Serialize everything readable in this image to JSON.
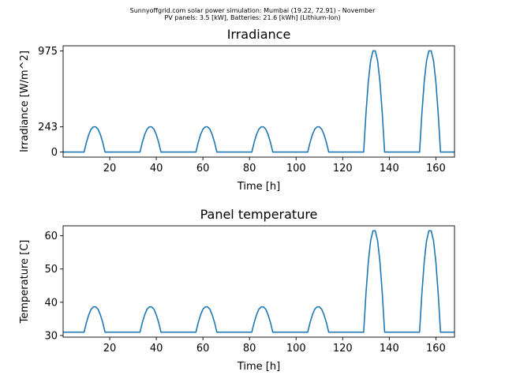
{
  "suptitle": {
    "line1": "Sunnyoffgrid.com solar power simulation: Mumbai (19.22, 72.91) - November",
    "line2": "PV panels: 3.5 [kW], Batteries: 21.6 [kWh] (Lithium-Ion)"
  },
  "colors": {
    "line": "#1f77b4",
    "axes": "#000000",
    "background": "#ffffff"
  },
  "chart_data": [
    {
      "type": "line",
      "title": "Irradiance",
      "xlabel": "Time [h]",
      "ylabel": "Irradiance [W/m^2]",
      "xlim": [
        0,
        168
      ],
      "ylim": [
        -49,
        1024
      ],
      "xticks": [
        20,
        40,
        60,
        80,
        100,
        120,
        140,
        160
      ],
      "yticks": [
        0,
        243,
        975
      ],
      "grid": false,
      "series": [
        {
          "color": "#1f77b4",
          "x": [
            0,
            9,
            10,
            11,
            12,
            13,
            14,
            15,
            16,
            17,
            18,
            19,
            33,
            34,
            35,
            36,
            37,
            38,
            39,
            40,
            41,
            42,
            43,
            57,
            58,
            59,
            60,
            61,
            62,
            63,
            64,
            65,
            66,
            67,
            81,
            82,
            83,
            84,
            85,
            86,
            87,
            88,
            89,
            90,
            91,
            105,
            106,
            107,
            108,
            109,
            110,
            111,
            112,
            113,
            114,
            115,
            129,
            130,
            131,
            132,
            133,
            134,
            135,
            136,
            137,
            138,
            139,
            153,
            154,
            155,
            156,
            157,
            158,
            159,
            160,
            161,
            162,
            163,
            168
          ],
          "y": [
            0,
            0,
            93,
            168,
            220,
            243,
            243,
            220,
            168,
            93,
            0,
            0,
            0,
            93,
            168,
            220,
            243,
            243,
            220,
            168,
            93,
            0,
            0,
            0,
            93,
            168,
            220,
            243,
            243,
            220,
            168,
            93,
            0,
            0,
            0,
            93,
            168,
            220,
            243,
            243,
            220,
            168,
            93,
            0,
            0,
            0,
            93,
            168,
            220,
            243,
            243,
            220,
            168,
            93,
            0,
            0,
            0,
            373,
            676,
            880,
            975,
            975,
            880,
            676,
            373,
            0,
            0,
            0,
            373,
            676,
            880,
            975,
            975,
            880,
            676,
            373,
            0,
            0,
            0
          ]
        }
      ]
    },
    {
      "type": "line",
      "title": "Panel temperature",
      "xlabel": "Time [h]",
      "ylabel": "Temperature [C]",
      "xlim": [
        0,
        168
      ],
      "ylim": [
        29.5,
        63
      ],
      "xticks": [
        20,
        40,
        60,
        80,
        100,
        120,
        140,
        160
      ],
      "yticks": [
        30,
        40,
        50,
        60
      ],
      "grid": false,
      "series": [
        {
          "color": "#1f77b4",
          "x": [
            0,
            9,
            10,
            11,
            12,
            13,
            14,
            15,
            16,
            17,
            18,
            19,
            33,
            34,
            35,
            36,
            37,
            38,
            39,
            40,
            41,
            42,
            43,
            57,
            58,
            59,
            60,
            61,
            62,
            63,
            64,
            65,
            66,
            67,
            81,
            82,
            83,
            84,
            85,
            86,
            87,
            88,
            89,
            90,
            91,
            105,
            106,
            107,
            108,
            109,
            110,
            111,
            112,
            113,
            114,
            115,
            129,
            130,
            131,
            132,
            133,
            134,
            135,
            136,
            137,
            138,
            139,
            153,
            154,
            155,
            156,
            157,
            158,
            159,
            160,
            161,
            162,
            163,
            168
          ],
          "y": [
            31,
            31,
            33.9,
            36.2,
            37.9,
            38.6,
            38.6,
            37.9,
            36.2,
            33.9,
            31,
            31,
            31,
            33.9,
            36.2,
            37.9,
            38.6,
            38.6,
            37.9,
            36.2,
            33.9,
            31,
            31,
            31,
            33.9,
            36.2,
            37.9,
            38.6,
            38.6,
            37.9,
            36.2,
            33.9,
            31,
            31,
            31,
            33.9,
            36.2,
            37.9,
            38.6,
            38.6,
            37.9,
            36.2,
            33.9,
            31,
            31,
            31,
            33.9,
            36.2,
            37.9,
            38.6,
            38.6,
            37.9,
            36.2,
            33.9,
            31,
            31,
            31,
            42.7,
            52.1,
            58.5,
            61.5,
            61.5,
            58.5,
            52.1,
            42.7,
            31,
            31,
            31,
            42.7,
            52.1,
            58.5,
            61.5,
            61.5,
            58.5,
            52.1,
            42.7,
            31,
            31,
            31
          ]
        }
      ]
    }
  ]
}
